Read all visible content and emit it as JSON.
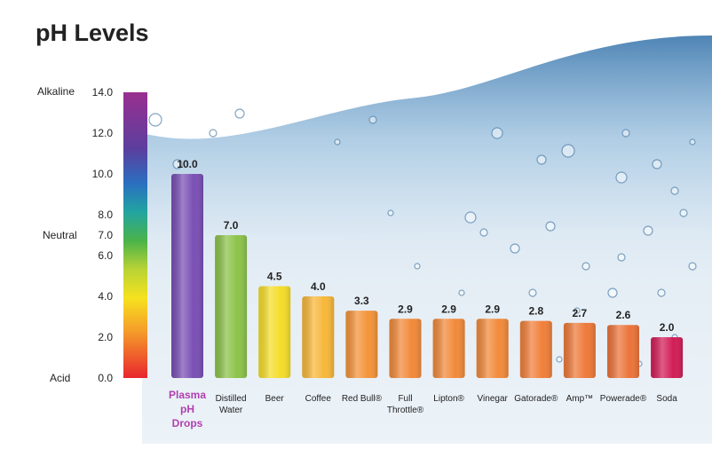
{
  "title": "pH Levels",
  "scale_labels": {
    "alkaline": "Alkaline",
    "neutral": "Neutral",
    "acid": "Acid"
  },
  "colors": {
    "plasma_label": "#b13fb0",
    "soda": "#d21d57",
    "text": "#222222"
  },
  "chart_data": {
    "type": "bar",
    "title": "pH Levels",
    "xlabel": "",
    "ylabel": "",
    "ylim": [
      0,
      14
    ],
    "yticks": [
      "0.0",
      "2.0",
      "4.0",
      "6.0",
      "7.0",
      "8.0",
      "10.0",
      "12.0",
      "14.0"
    ],
    "ytick_values": [
      0,
      2,
      4,
      6,
      7,
      8,
      10,
      12,
      14
    ],
    "categories": [
      "Plasma pH Drops",
      "Distilled Water",
      "Beer",
      "Coffee",
      "Red Bull®",
      "Full Throttle®",
      "Lipton®",
      "Vinegar",
      "Gatorade®",
      "Amp™",
      "Powerade®",
      "Soda"
    ],
    "category_lines": [
      [
        "Plasma",
        "pH",
        "Drops"
      ],
      [
        "Distilled",
        "Water"
      ],
      [
        "Beer"
      ],
      [
        "Coffee"
      ],
      [
        "Red Bull®"
      ],
      [
        "Full",
        "Throttle®"
      ],
      [
        "Lipton®"
      ],
      [
        "Vinegar"
      ],
      [
        "Gatorade®"
      ],
      [
        "Amp™"
      ],
      [
        "Powerade®"
      ],
      [
        "Soda"
      ]
    ],
    "values": [
      10.0,
      7.0,
      4.5,
      4.0,
      3.3,
      2.9,
      2.9,
      2.9,
      2.8,
      2.7,
      2.6,
      2.0
    ],
    "value_labels": [
      "10.0",
      "7.0",
      "4.5",
      "4.0",
      "3.3",
      "2.9",
      "2.9",
      "2.9",
      "2.8",
      "2.7",
      "2.6",
      "2.0"
    ],
    "bar_colors": [
      "#7a4fb5",
      "#8cc34a",
      "#f5dd2a",
      "#f7b73a",
      "#f4943a",
      "#f28a3a",
      "#f28a3a",
      "#f28a3a",
      "#f0803a",
      "#ee7a3a",
      "#ec743a",
      "#d21d57"
    ],
    "grid": false,
    "legend": "none"
  }
}
